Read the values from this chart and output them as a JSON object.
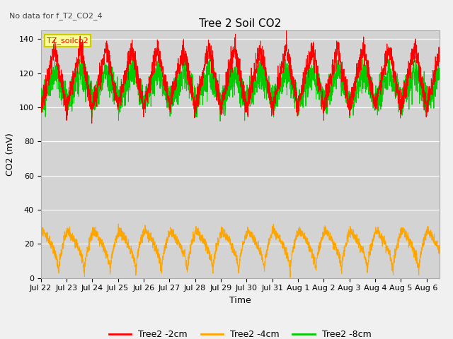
{
  "title": "Tree 2 Soil CO2",
  "no_data_text": "No data for f_T2_CO2_4",
  "ylabel": "CO2 (mV)",
  "xlabel": "Time",
  "ylim": [
    0,
    145
  ],
  "xlim_days": [
    0,
    15.5
  ],
  "fig_bg": "#f0f0f0",
  "plot_bg": "#d3d3d3",
  "legend_box_label": "TZ_soilco2",
  "legend_box_facecolor": "#ffff99",
  "legend_box_edgecolor": "#cccc00",
  "xtick_labels": [
    "Jul 22",
    "Jul 23",
    "Jul 24",
    "Jul 25",
    "Jul 26",
    "Jul 27",
    "Jul 28",
    "Jul 29",
    "Jul 30",
    "Jul 31",
    "Aug 1",
    "Aug 2",
    "Aug 3",
    "Aug 4",
    "Aug 5",
    "Aug 6"
  ],
  "ytick_values": [
    0,
    20,
    40,
    60,
    80,
    100,
    120,
    140
  ],
  "series_red_color": "#ff0000",
  "series_red_label": "Tree2 -2cm",
  "series_orange_color": "#ffa500",
  "series_orange_label": "Tree2 -4cm",
  "series_green_color": "#00cc00",
  "series_green_label": "Tree2 -8cm"
}
